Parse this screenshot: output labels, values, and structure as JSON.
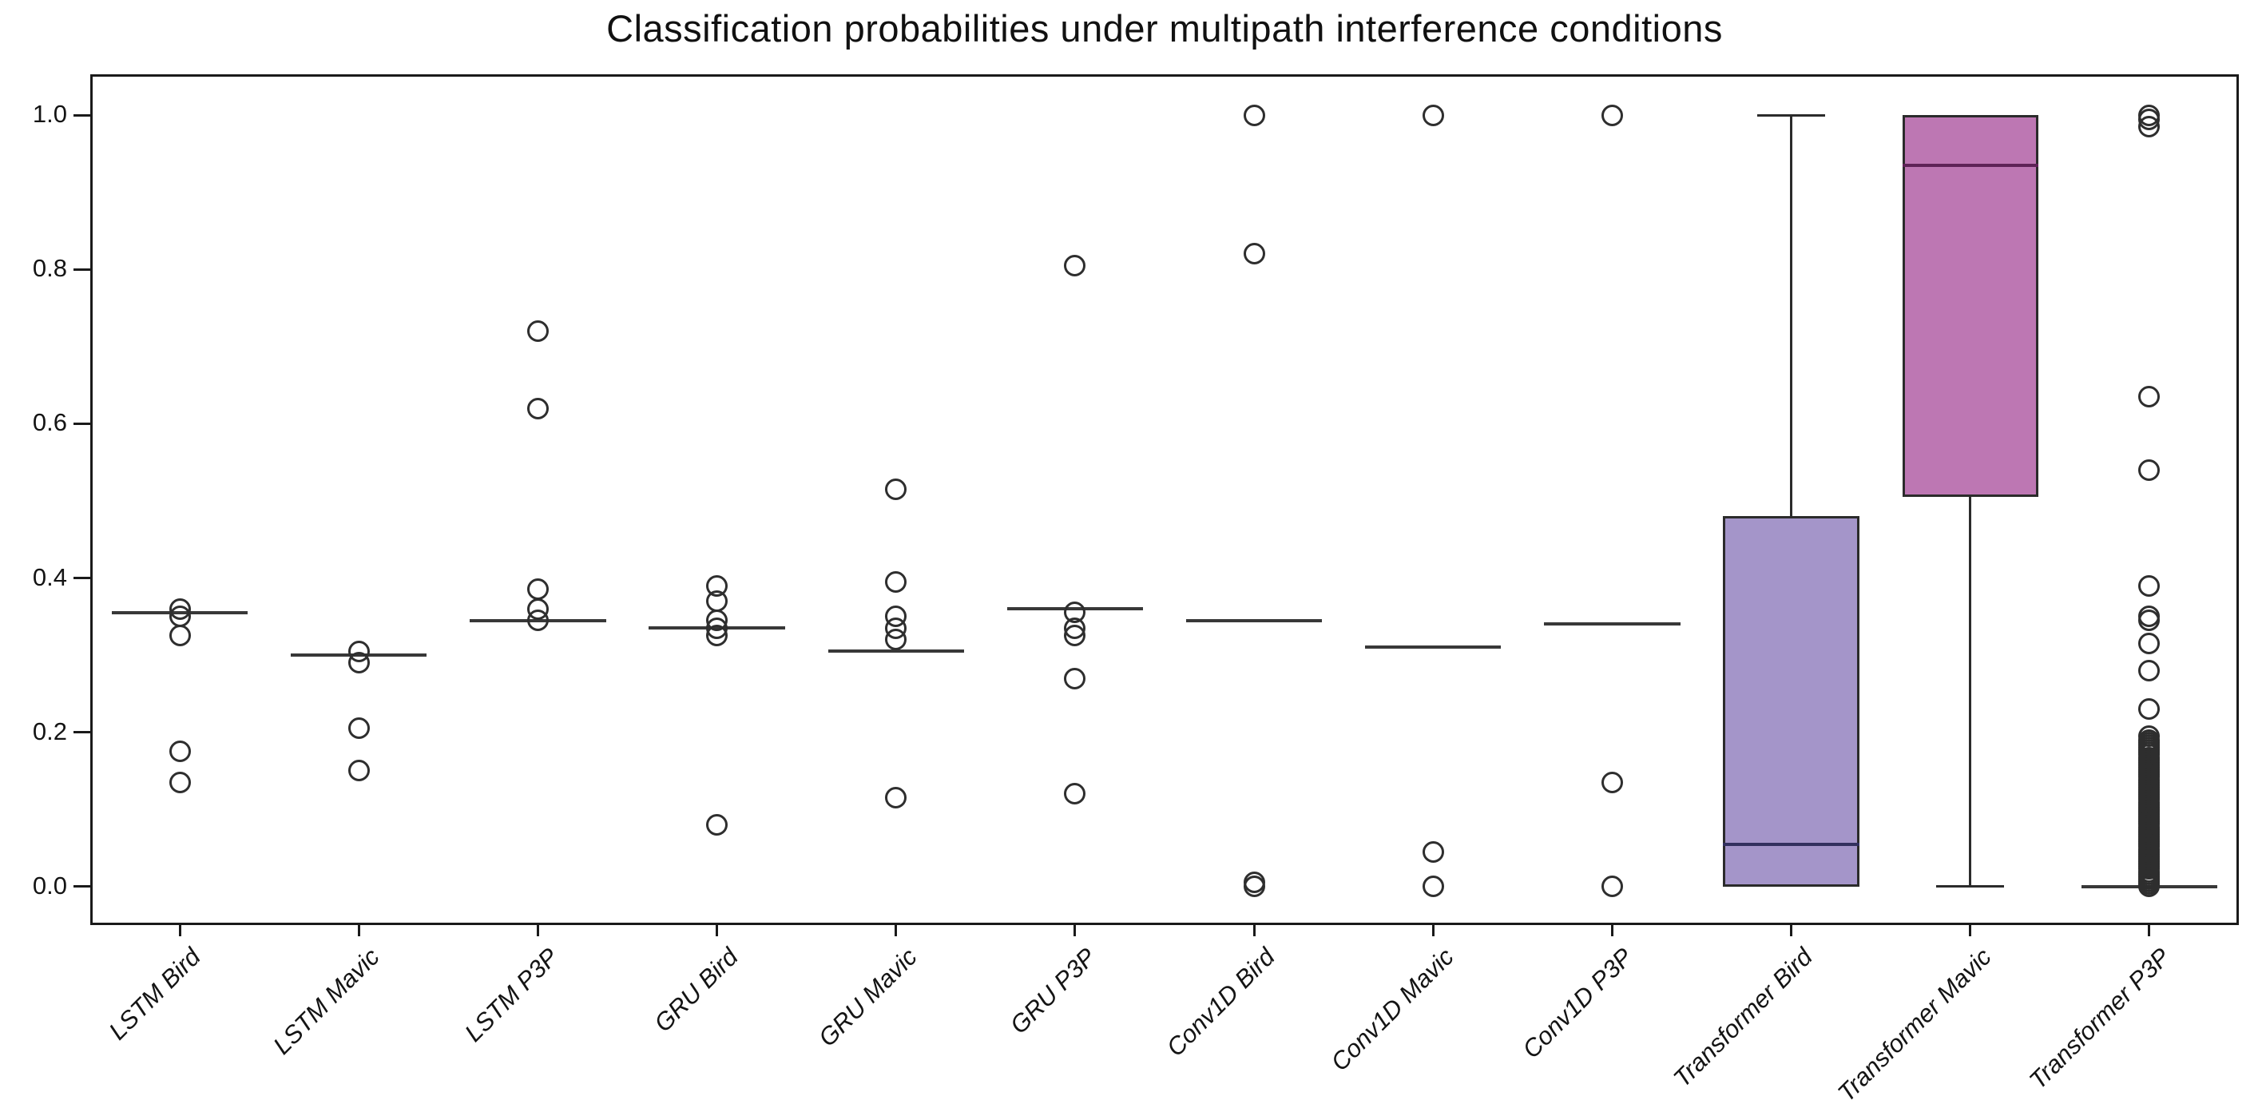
{
  "title": "Classification probabilities under multipath interference conditions",
  "chart_data": {
    "type": "box",
    "title": "Classification probabilities under multipath interference conditions",
    "xlabel": "",
    "ylabel": "",
    "ylim": [
      -0.05,
      1.053
    ],
    "y_ticks": [
      0.0,
      0.2,
      0.4,
      0.6,
      0.8,
      1.0
    ],
    "grid": false,
    "legend": "none",
    "frame_color": "#1a1a1a",
    "default_line_color": "#383838",
    "outlier_stroke": "#2e2e2e",
    "categories": [
      "LSTM Bird",
      "LSTM Mavic",
      "LSTM P3P",
      "GRU Bird",
      "GRU Mavic",
      "GRU P3P",
      "Conv1D Bird",
      "Conv1D Mavic",
      "Conv1D P3P",
      "Transformer Bird",
      "Transformer Mavic",
      "Transformer P3P"
    ],
    "boxes": [
      {
        "label": "LSTM Bird",
        "q1": 0.355,
        "median": 0.355,
        "q3": 0.355,
        "whisker_low": 0.355,
        "whisker_high": 0.355,
        "fill": null,
        "outliers": [
          0.36,
          0.35,
          0.325,
          0.175,
          0.135
        ]
      },
      {
        "label": "LSTM Mavic",
        "q1": 0.3,
        "median": 0.3,
        "q3": 0.3,
        "whisker_low": 0.3,
        "whisker_high": 0.3,
        "fill": null,
        "outliers": [
          0.305,
          0.29,
          0.205,
          0.15
        ]
      },
      {
        "label": "LSTM P3P",
        "q1": 0.345,
        "median": 0.345,
        "q3": 0.345,
        "whisker_low": 0.345,
        "whisker_high": 0.345,
        "fill": null,
        "outliers": [
          0.72,
          0.62,
          0.385,
          0.36,
          0.345
        ]
      },
      {
        "label": "GRU Bird",
        "q1": 0.335,
        "median": 0.335,
        "q3": 0.335,
        "whisker_low": 0.335,
        "whisker_high": 0.335,
        "fill": null,
        "outliers": [
          0.39,
          0.37,
          0.345,
          0.335,
          0.325,
          0.08
        ]
      },
      {
        "label": "GRU Mavic",
        "q1": 0.305,
        "median": 0.305,
        "q3": 0.305,
        "whisker_low": 0.305,
        "whisker_high": 0.305,
        "fill": null,
        "outliers": [
          0.515,
          0.395,
          0.35,
          0.335,
          0.32,
          0.115
        ]
      },
      {
        "label": "GRU P3P",
        "q1": 0.36,
        "median": 0.36,
        "q3": 0.36,
        "whisker_low": 0.36,
        "whisker_high": 0.36,
        "fill": null,
        "outliers": [
          0.805,
          0.355,
          0.335,
          0.325,
          0.27,
          0.12
        ]
      },
      {
        "label": "Conv1D Bird",
        "q1": 0.345,
        "median": 0.345,
        "q3": 0.345,
        "whisker_low": 0.345,
        "whisker_high": 0.345,
        "fill": null,
        "outliers": [
          1.0,
          0.82,
          0.005,
          0.0
        ]
      },
      {
        "label": "Conv1D Mavic",
        "q1": 0.31,
        "median": 0.31,
        "q3": 0.31,
        "whisker_low": 0.31,
        "whisker_high": 0.31,
        "fill": null,
        "outliers": [
          1.0,
          0.045,
          0.0
        ]
      },
      {
        "label": "Conv1D P3P",
        "q1": 0.34,
        "median": 0.34,
        "q3": 0.34,
        "whisker_low": 0.34,
        "whisker_high": 0.34,
        "fill": null,
        "outliers": [
          1.0,
          0.135,
          0.0
        ]
      },
      {
        "label": "Transformer Bird",
        "q1": 0.0,
        "median": 0.055,
        "q3": 0.48,
        "whisker_low": 0.0,
        "whisker_high": 1.0,
        "fill": "#a495c9",
        "median_color": "#32305e",
        "outliers": []
      },
      {
        "label": "Transformer Mavic",
        "q1": 0.505,
        "median": 0.935,
        "q3": 1.0,
        "whisker_low": 0.0,
        "whisker_high": 1.0,
        "fill": "#bd77b3",
        "median_color": "#5e2357",
        "outliers": []
      },
      {
        "label": "Transformer P3P",
        "q1": 0.0,
        "median": 0.0,
        "q3": 0.0,
        "whisker_low": 0.0,
        "whisker_high": 0.0,
        "fill": null,
        "outliers": [
          1.0,
          0.995,
          0.985,
          0.635,
          0.54,
          0.39,
          0.35,
          0.345,
          0.315,
          0.28,
          0.23,
          0.195
        ],
        "outlier_stack": {
          "min": 0.0,
          "max": 0.19,
          "count": 60
        }
      }
    ]
  }
}
